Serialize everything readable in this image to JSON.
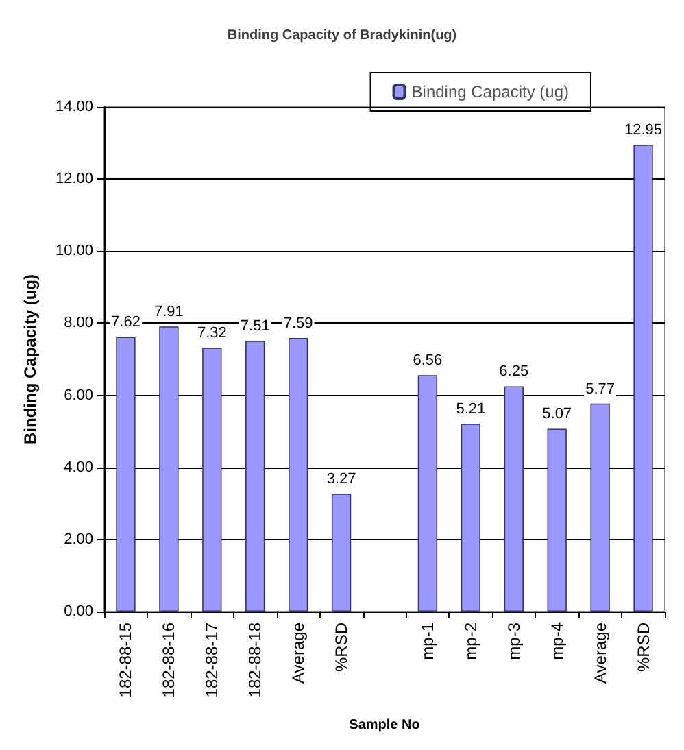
{
  "chart_data": {
    "type": "bar",
    "title": "Binding Capacity of Bradykinin(ug)",
    "xlabel": "Sample No",
    "ylabel": "Binding Capacity (ug)",
    "categories": [
      "182-88-15",
      "182-88-16",
      "182-88-17",
      "182-88-18",
      "Average",
      "%RSD",
      null,
      "mp-1",
      "mp-2",
      "mp-3",
      "mp-4",
      "Average",
      "%RSD"
    ],
    "series": [
      {
        "name": "Binding Capacity (ug)",
        "color": "#9999ff",
        "values": [
          7.62,
          7.91,
          7.32,
          7.51,
          7.59,
          3.27,
          null,
          6.56,
          5.21,
          6.25,
          5.07,
          5.77,
          12.95
        ]
      }
    ],
    "ylim": [
      0,
      14
    ],
    "yticks": [
      {
        "value": 0,
        "label": "0.00"
      },
      {
        "value": 2,
        "label": "2.00"
      },
      {
        "value": 4,
        "label": "4.00"
      },
      {
        "value": 6,
        "label": "6.00"
      },
      {
        "value": 8,
        "label": "8.00"
      },
      {
        "value": 10,
        "label": "10.00"
      },
      {
        "value": 12,
        "label": "12.00"
      },
      {
        "value": 14,
        "label": "14.00"
      }
    ],
    "grid": "y",
    "legend": "top right",
    "data_labels": true
  }
}
